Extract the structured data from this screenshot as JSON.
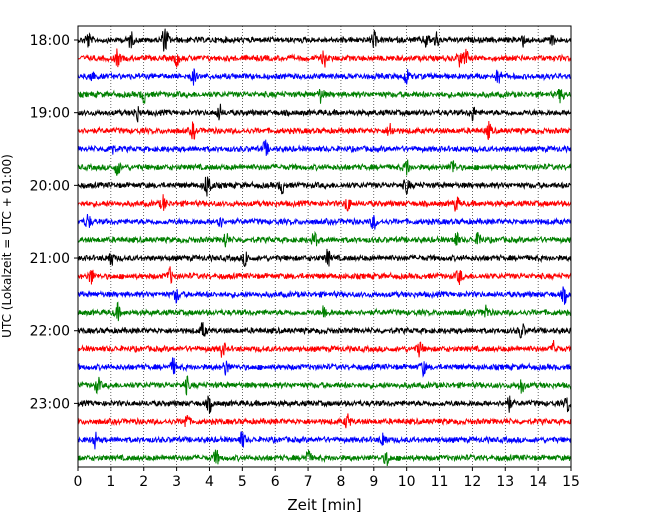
{
  "chart_data": {
    "type": "line",
    "title": "",
    "xlabel": "Zeit  [min]",
    "ylabel": "UTC (Lokalzeit = UTC + 01:00)",
    "xlim": [
      0,
      15
    ],
    "x_ticks": [
      0,
      1,
      2,
      3,
      4,
      5,
      6,
      7,
      8,
      9,
      10,
      11,
      12,
      13,
      14,
      15
    ],
    "y_tick_labels": [
      {
        "label": "18:00",
        "row": 0
      },
      {
        "label": "19:00",
        "row": 4
      },
      {
        "label": "20:00",
        "row": 8
      },
      {
        "label": "21:00",
        "row": 12
      },
      {
        "label": "22:00",
        "row": 16
      },
      {
        "label": "23:00",
        "row": 20
      }
    ],
    "grid": "vertical-dotted",
    "row_interval_minutes": 15,
    "trace_colors": [
      "#000000",
      "#ff0000",
      "#0000ff",
      "#008000"
    ],
    "rows": [
      {
        "start": "18:00",
        "color": "#000000",
        "bursts": [
          0.3,
          1.6,
          2.6,
          2.7,
          9.0,
          10.6,
          10.9,
          13.5,
          14.4
        ]
      },
      {
        "start": "18:15",
        "color": "#ff0000",
        "bursts": [
          1.2,
          3.0,
          7.5,
          11.6,
          11.8
        ]
      },
      {
        "start": "18:30",
        "color": "#0000ff",
        "bursts": [
          0.4,
          3.5,
          10.0,
          12.8
        ]
      },
      {
        "start": "18:45",
        "color": "#008000",
        "bursts": [
          2.0,
          7.4,
          14.7
        ]
      },
      {
        "start": "19:00",
        "color": "#000000",
        "bursts": [
          1.8,
          4.3,
          12.0
        ]
      },
      {
        "start": "19:15",
        "color": "#ff0000",
        "bursts": [
          3.5,
          9.5,
          12.5
        ]
      },
      {
        "start": "19:30",
        "color": "#0000ff",
        "bursts": [
          1.0,
          5.7
        ]
      },
      {
        "start": "19:45",
        "color": "#008000",
        "bursts": [
          1.2,
          10.0,
          11.4
        ]
      },
      {
        "start": "20:00",
        "color": "#000000",
        "bursts": [
          3.9,
          4.0,
          6.2,
          10.0
        ]
      },
      {
        "start": "20:15",
        "color": "#ff0000",
        "bursts": [
          2.6,
          8.2,
          11.5
        ]
      },
      {
        "start": "20:30",
        "color": "#0000ff",
        "bursts": [
          0.3,
          4.3,
          9.0
        ]
      },
      {
        "start": "20:45",
        "color": "#008000",
        "bursts": [
          4.5,
          7.2,
          11.5,
          12.2
        ]
      },
      {
        "start": "21:00",
        "color": "#000000",
        "bursts": [
          1.0,
          5.1,
          7.6
        ]
      },
      {
        "start": "21:15",
        "color": "#ff0000",
        "bursts": [
          0.4,
          2.8,
          11.6
        ]
      },
      {
        "start": "21:30",
        "color": "#0000ff",
        "bursts": [
          3.0,
          14.8
        ]
      },
      {
        "start": "21:45",
        "color": "#008000",
        "bursts": [
          1.2,
          7.5,
          12.4
        ]
      },
      {
        "start": "22:00",
        "color": "#000000",
        "bursts": [
          3.8,
          13.5
        ]
      },
      {
        "start": "22:15",
        "color": "#ff0000",
        "bursts": [
          4.4,
          10.4,
          14.5
        ]
      },
      {
        "start": "22:30",
        "color": "#0000ff",
        "bursts": [
          2.9,
          4.5,
          10.5
        ]
      },
      {
        "start": "22:45",
        "color": "#008000",
        "bursts": [
          0.6,
          3.3,
          13.5
        ]
      },
      {
        "start": "23:00",
        "color": "#000000",
        "bursts": [
          4.0,
          13.1,
          14.9
        ]
      },
      {
        "start": "23:15",
        "color": "#ff0000",
        "bursts": [
          3.3,
          8.2
        ]
      },
      {
        "start": "23:30",
        "color": "#0000ff",
        "bursts": [
          0.5,
          5.0,
          9.3
        ]
      },
      {
        "start": "23:45",
        "color": "#008000",
        "bursts": [
          4.2,
          7.0,
          9.4
        ]
      }
    ]
  }
}
